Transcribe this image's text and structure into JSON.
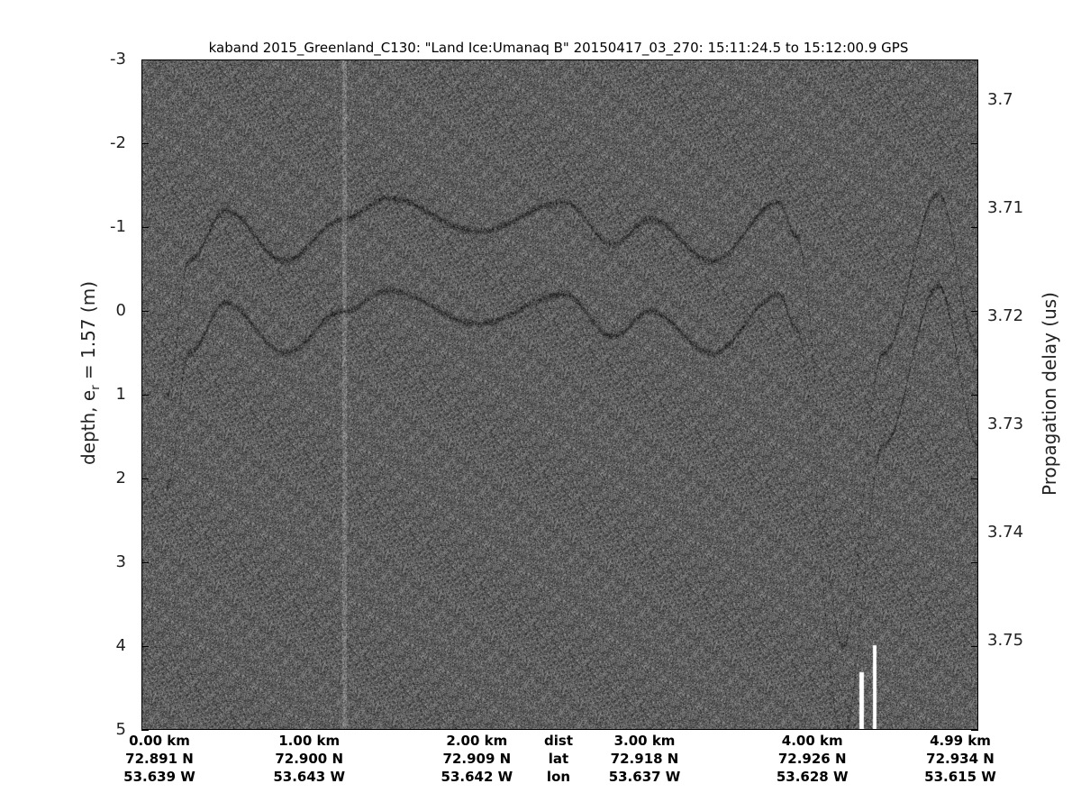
{
  "chart_data": {
    "type": "heatmap",
    "title": "kaband 2015_Greenland_C130: \"Land Ice:Umanaq B\"  20150417_03_270: 15:11:24.5 to 15:12:00.9 GPS",
    "ylabel_left": "depth, e",
    "ylabel_left_sub": "r",
    "ylabel_left_tail": " = 1.57 (m)",
    "ylabel_right": "Propagation delay (us)",
    "ylim_left": [
      -3,
      5
    ],
    "yticks_left": [
      "-3",
      "-2",
      "-1",
      "0",
      "1",
      "2",
      "3",
      "4",
      "5"
    ],
    "yticks_right": [
      "3.7",
      "3.71",
      "3.72",
      "3.73",
      "3.74",
      "3.75"
    ],
    "yticks_right_values": [
      3.7,
      3.71,
      3.72,
      3.73,
      3.74,
      3.75
    ],
    "xlim_km": [
      0,
      4.99
    ],
    "colormap": "gray",
    "x_labels": {
      "row_names": [
        "dist",
        "lat",
        "lon"
      ],
      "dist": [
        "0.00 km",
        "1.00 km",
        "2.00 km",
        "3.00 km",
        "4.00 km",
        "4.99 km"
      ],
      "lat": [
        "72.891 N",
        "72.900 N",
        "72.909 N",
        "72.918 N",
        "72.926 N",
        "72.934 N"
      ],
      "lon": [
        "53.639 W",
        "53.643 W",
        "53.642 W",
        "53.637 W",
        "53.628 W",
        "53.615 W"
      ],
      "dist_km": [
        0,
        1,
        2,
        3,
        4,
        4.99
      ]
    },
    "layer_upper": [
      [
        0.15,
        1.0
      ],
      [
        0.28,
        -0.6
      ],
      [
        0.5,
        -1.2
      ],
      [
        0.85,
        -0.6
      ],
      [
        1.2,
        -1.1
      ],
      [
        1.47,
        -1.35
      ],
      [
        2.0,
        -0.95
      ],
      [
        2.52,
        -1.3
      ],
      [
        2.81,
        -0.8
      ],
      [
        3.03,
        -1.1
      ],
      [
        3.4,
        -0.6
      ],
      [
        3.8,
        -1.3
      ],
      [
        3.9,
        -0.9
      ],
      [
        4.18,
        4.0
      ],
      [
        4.42,
        0.5
      ],
      [
        4.75,
        -1.4
      ],
      [
        4.99,
        0.5
      ]
    ],
    "layer_offset_m": 1.1
  }
}
